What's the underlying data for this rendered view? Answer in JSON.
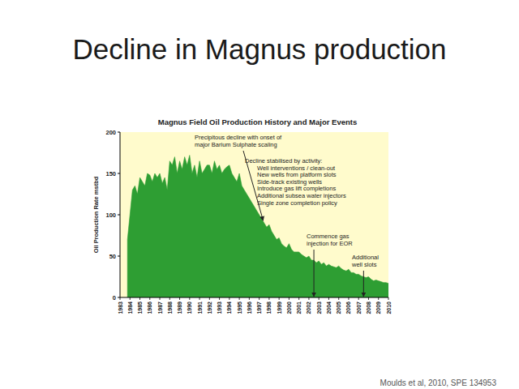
{
  "slide": {
    "title": "Decline in Magnus production",
    "source": "Moulds et al, 2010, SPE 134953"
  },
  "chart_data": {
    "type": "area",
    "title": "Magnus Field Oil Production History and Major Events",
    "y_label": "Oil Production Rate mstbd",
    "color": "#2e9e33",
    "grid": false,
    "xlim": [
      1983,
      2010
    ],
    "xticks": [
      1983,
      1984,
      1985,
      1986,
      1987,
      1988,
      1989,
      1990,
      1991,
      1992,
      1993,
      1994,
      1995,
      1996,
      1997,
      1998,
      1999,
      2000,
      2001,
      2002,
      2003,
      2004,
      2005,
      2006,
      2007,
      2008,
      2009,
      2010
    ],
    "ylim": [
      0,
      200
    ],
    "yticks": [
      0,
      50,
      100,
      150,
      200
    ],
    "x": [
      1983.75,
      1984,
      1984.25,
      1984.5,
      1984.75,
      1985,
      1985.25,
      1985.5,
      1985.75,
      1986,
      1986.25,
      1986.5,
      1986.75,
      1987,
      1987.25,
      1987.5,
      1987.75,
      1988,
      1988.25,
      1988.5,
      1988.75,
      1989,
      1989.25,
      1989.5,
      1989.75,
      1990,
      1990.25,
      1990.5,
      1990.75,
      1991,
      1991.25,
      1991.5,
      1991.75,
      1992,
      1992.25,
      1992.5,
      1992.75,
      1993,
      1993.25,
      1993.5,
      1993.75,
      1994,
      1994.25,
      1994.5,
      1994.75,
      1995,
      1995.25,
      1995.5,
      1995.75,
      1996,
      1996.25,
      1996.5,
      1996.75,
      1997,
      1997.25,
      1997.5,
      1997.75,
      1998,
      1998.25,
      1998.5,
      1998.75,
      1999,
      1999.25,
      1999.5,
      1999.75,
      2000,
      2000.25,
      2000.5,
      2000.75,
      2001,
      2001.25,
      2001.5,
      2001.75,
      2002,
      2002.25,
      2002.5,
      2002.75,
      2003,
      2003.25,
      2003.5,
      2003.75,
      2004,
      2004.25,
      2004.5,
      2004.75,
      2005,
      2005.25,
      2005.5,
      2005.75,
      2006,
      2006.25,
      2006.5,
      2006.75,
      2007,
      2007.25,
      2007.5,
      2007.75,
      2008,
      2008.25,
      2008.5,
      2008.75,
      2009,
      2009.25,
      2009.5,
      2009.75,
      2010
    ],
    "values": [
      70,
      100,
      130,
      135,
      125,
      145,
      140,
      135,
      150,
      148,
      140,
      150,
      145,
      150,
      138,
      145,
      130,
      165,
      160,
      170,
      150,
      165,
      155,
      170,
      160,
      172,
      150,
      160,
      145,
      165,
      150,
      155,
      160,
      160,
      150,
      165,
      155,
      160,
      150,
      155,
      158,
      160,
      150,
      145,
      140,
      150,
      135,
      130,
      125,
      120,
      115,
      110,
      105,
      100,
      95,
      90,
      85,
      88,
      80,
      75,
      70,
      72,
      65,
      62,
      60,
      65,
      58,
      55,
      55,
      55,
      52,
      50,
      48,
      50,
      45,
      45,
      42,
      44,
      40,
      42,
      38,
      40,
      38,
      37,
      36,
      38,
      35,
      33,
      32,
      34,
      30,
      30,
      28,
      28,
      26,
      25,
      24,
      25,
      22,
      20,
      21,
      20,
      19,
      18,
      18,
      17
    ],
    "annotations": [
      {
        "text": [
          "Precipitous decline with onset of",
          "major Barium Sulphate scaling"
        ],
        "x": 1997.4,
        "y": 92
      },
      {
        "text": [
          "Decline stabilised by activity:",
          "Well interventions / clean-out",
          "New wells from platform slots",
          "Side-track existing wells",
          "Introduce gas lift completions",
          "Additional subsea water injectors",
          "Single zone completion policy"
        ]
      },
      {
        "text": [
          "Commence gas",
          "injection for EOR"
        ],
        "x": 2002.5,
        "y": 0
      },
      {
        "text": [
          "Additional",
          "well slots"
        ],
        "x": 2007.5,
        "y": 0
      }
    ]
  }
}
